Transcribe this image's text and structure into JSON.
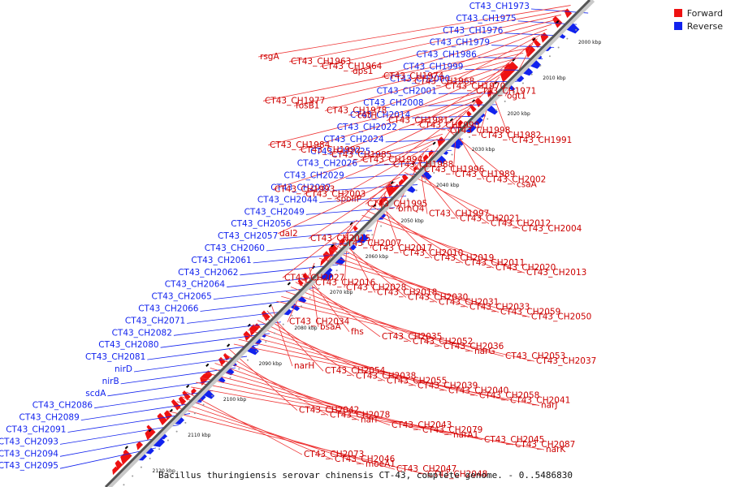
{
  "legend": {
    "forward_label": "Forward",
    "reverse_label": "Reverse",
    "forward_color": "#ee1111",
    "reverse_color": "#1122ee"
  },
  "caption": "Bacillus thuringiensis serovar chinensis CT-43, complete genome. - 0..5486830",
  "axis": {
    "ticks": [
      "2000 kbp",
      "2010 kbp",
      "2020 kbp",
      "2030 kbp",
      "2040 kbp",
      "2050 kbp",
      "2060 kbp",
      "2070 kbp",
      "2080 kbp",
      "2090 kbp",
      "2100 kbp",
      "2110 kbp",
      "2120 kbp"
    ]
  },
  "reverse_labels": [
    "CT43_CH1973",
    "CT43_CH1975",
    "CT43_CH1976",
    "CT43_CH1979",
    "CT43_CH1986",
    "CT43_CH1999",
    "CT43_CH2000",
    "CT43_CH2001",
    "CT43_CH2008",
    "CT43_CH2014",
    "CT43_CH2022",
    "CT43_CH2024",
    "CT43_CH2025",
    "CT43_CH2026",
    "CT43_CH2029",
    "CT43_CH2032",
    "CT43_CH2044",
    "CT43_CH2049",
    "CT43_CH2056",
    "CT43_CH2057",
    "CT43_CH2060",
    "CT43_CH2061",
    "CT43_CH2062",
    "CT43_CH2064",
    "CT43_CH2065",
    "CT43_CH2066",
    "CT43_CH2071",
    "CT43_CH2082",
    "CT43_CH2080",
    "CT43_CH2081",
    "nirD",
    "nirB",
    "scdA",
    "CT43_CH2086",
    "CT43_CH2089",
    "CT43_CH2091",
    "CT43_CH2093",
    "CT43_CH2094",
    "CT43_CH2095"
  ],
  "forward_labels": [
    "rsgA",
    "CT43_CH1963",
    "CT43_CH1964",
    "dps1",
    "CT43_CH1974",
    "CT43_CH1968",
    "CT43_CH1970",
    "CT43_CH1971",
    "ogt1",
    "CT43_CH1977",
    "fosB1",
    "CT43_CH1978",
    "cotH",
    "CT43_CH1981",
    "CT43_CH1990",
    "CT43_CH1998",
    "CT43_CH1982",
    "CT43_CH1991",
    "CT43_CH1984",
    "CT43_CH1992",
    "CT43_CH1985",
    "CT43_CH1994",
    "CT43_CH1988",
    "CT43_CH1996",
    "CT43_CH1989",
    "CT43_CH2002",
    "csaA",
    "CT43_CH1993",
    "CT43_CH2003",
    "spoIIP",
    "CT43_CH1995",
    "brnQ4",
    "CT43_CH1997",
    "CT43_CH2021",
    "CT43_CH2012",
    "CT43_CH2004",
    "dal2",
    "CT43_CH2015",
    "CT43_CH2007",
    "CT43_CH2017",
    "CT43_CH2010",
    "CT43_CH2019",
    "CT43_CH2011",
    "CT43_CH2020",
    "CT43_CH2013",
    "CT43_CH2027",
    "CT43_CH2016",
    "CT43_CH2028",
    "CT43_CH2018",
    "CT43_CH2030",
    "CT43_CH2031",
    "CT43_CH2033",
    "CT43_CH2059",
    "CT43_CH2050",
    "CT43_CH2034",
    "bsaA",
    "fhs",
    "CT43_CH2035",
    "CT43_CH2052",
    "CT43_CH2036",
    "narG",
    "CT43_CH2053",
    "CT43_CH2037",
    "narH",
    "CT43_CH2054",
    "CT43_CH2038",
    "CT43_CH2055",
    "CT43_CH2039",
    "CT43_CH2040",
    "CT43_CH2058",
    "CT43_CH2041",
    "narJ",
    "CT43_CH2042",
    "CT43_CH2078",
    "narI",
    "CT43_CH2043",
    "CT43_CH2079",
    "narA1",
    "CT43_CH2045",
    "CT43_CH2087",
    "narK",
    "CT43_CH2073",
    "CT43_CH2046",
    "moeA1",
    "CT43_CH2047",
    "CT43_CH2048"
  ]
}
